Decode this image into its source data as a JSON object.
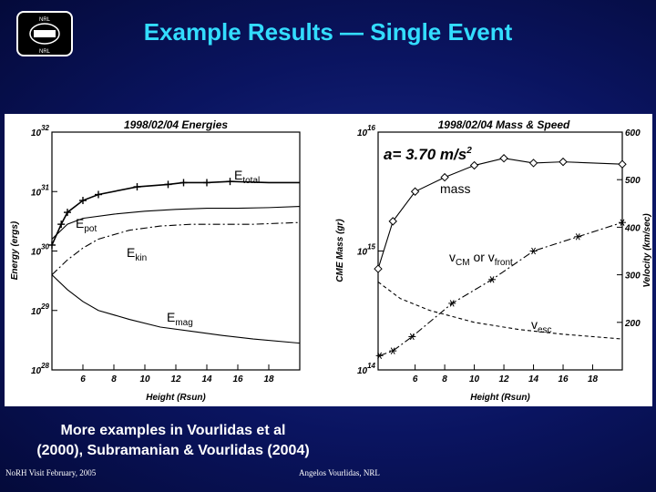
{
  "slide": {
    "title": "Example Results — Single Event",
    "caption_line1": "More examples in Vourlidas et al",
    "caption_line2": "(2000), Subramanian & Vourlidas (2004)",
    "footer_left": "NoRH Visit February, 2005",
    "footer_right": "Angelos Vourlidas, NRL",
    "title_color": "#33ddff",
    "background_color": "#0a1460"
  },
  "logo": {
    "top": "NRL",
    "bottom": "NRL"
  },
  "chart_data": [
    {
      "type": "line",
      "title": "1998/02/04",
      "subtitle": "Energies",
      "xlabel": "Height (Rsun)",
      "ylabel": "Energy (ergs)",
      "xlim": [
        4,
        20
      ],
      "ylim_log10": [
        28,
        32
      ],
      "x_ticks": [
        "6",
        "8",
        "10",
        "12",
        "14",
        "16",
        "18"
      ],
      "y_ticks": [
        "10^28",
        "10^29",
        "10^30",
        "10^31",
        "10^32"
      ],
      "y_scale": "log",
      "series": [
        {
          "name": "Etotal",
          "x": [
            4.0,
            4.6,
            5.0,
            6.0,
            7.0,
            9.5,
            11.5,
            12.5,
            14.0,
            15.5,
            18.0,
            20.0
          ],
          "log10_values": [
            30.1,
            30.45,
            30.65,
            30.85,
            30.95,
            31.08,
            31.12,
            31.15,
            31.15,
            31.17,
            31.15,
            31.15
          ]
        },
        {
          "name": "Epot",
          "x": [
            4.0,
            5.0,
            6.0,
            8.0,
            10.0,
            12.0,
            14.0,
            16.0,
            18.0,
            20.0
          ],
          "log10_values": [
            30.2,
            30.45,
            30.55,
            30.62,
            30.67,
            30.7,
            30.72,
            30.72,
            30.73,
            30.75
          ]
        },
        {
          "name": "Ekin",
          "x": [
            4.0,
            5.0,
            6.0,
            7.0,
            9.0,
            11.0,
            13.0,
            15.0,
            17.0,
            20.0
          ],
          "log10_values": [
            29.6,
            29.85,
            30.05,
            30.2,
            30.35,
            30.42,
            30.45,
            30.45,
            30.45,
            30.48
          ]
        },
        {
          "name": "Emag",
          "x": [
            4.0,
            5.0,
            6.0,
            7.0,
            9.0,
            11.0,
            13.0,
            15.0,
            17.0,
            20.0
          ],
          "log10_values": [
            29.6,
            29.35,
            29.15,
            29.0,
            28.85,
            28.72,
            28.65,
            28.58,
            28.52,
            28.45
          ]
        }
      ],
      "annotations": [
        {
          "text": "E",
          "sub": "total"
        },
        {
          "text": "E",
          "sub": "pot"
        },
        {
          "text": "E",
          "sub": "kin"
        },
        {
          "text": "E",
          "sub": "mag"
        }
      ]
    },
    {
      "type": "line",
      "title": "1998/02/04",
      "subtitle": "Mass  &  Speed",
      "xlabel": "Height (Rsun)",
      "ylabel": "CME Mass (gr)",
      "y2label": "Velocity (km/sec)",
      "xlim": [
        3.5,
        20
      ],
      "ylim_log10": [
        14,
        16
      ],
      "y2lim": [
        100,
        600
      ],
      "x_ticks": [
        "6",
        "8",
        "10",
        "12",
        "14",
        "16",
        "18"
      ],
      "y_ticks": [
        "10^14",
        "10^15",
        "10^16"
      ],
      "y2_ticks": [
        "200",
        "300",
        "400",
        "500",
        "600"
      ],
      "acceleration_label": "a=  3.70  m/s",
      "series": [
        {
          "name": "mass",
          "x": [
            3.5,
            4.5,
            6.0,
            8.0,
            10.0,
            12.0,
            14.0,
            16.0,
            20.0
          ],
          "log10_values": [
            14.85,
            15.25,
            15.5,
            15.62,
            15.72,
            15.78,
            15.74,
            15.75,
            15.73
          ]
        },
        {
          "name": "vCM or vfront",
          "x": [
            3.6,
            4.5,
            5.8,
            8.5,
            11.2,
            14.0,
            17.0,
            20.0
          ],
          "values": [
            130,
            140,
            170,
            240,
            290,
            350,
            380,
            410
          ]
        },
        {
          "name": "vesc",
          "x": [
            3.5,
            5.0,
            7.0,
            10.0,
            13.0,
            16.0,
            20.0
          ],
          "values": [
            285,
            250,
            225,
            200,
            185,
            175,
            165
          ]
        }
      ],
      "annotations": [
        {
          "text": "mass"
        },
        {
          "text": "v",
          "sub": "CM",
          "text2": " or v",
          "sub2": "front"
        },
        {
          "text": "v",
          "sub": "esc"
        }
      ]
    }
  ]
}
